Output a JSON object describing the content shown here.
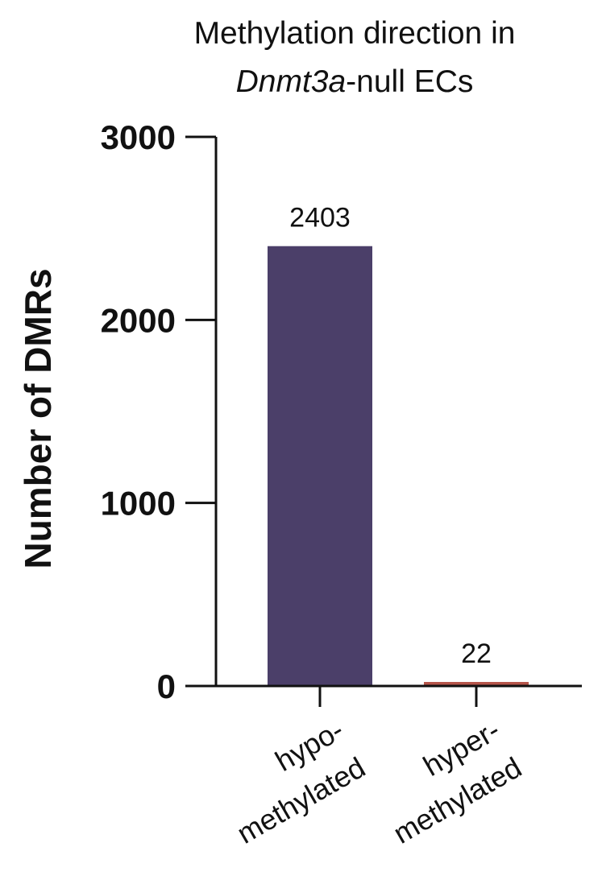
{
  "chart_data": {
    "type": "bar",
    "title_line1": "Methylation direction in",
    "title_line2_italic": "Dnmt3a",
    "title_line2_rest": "-null ECs",
    "ylabel": "Number of DMRs",
    "xlabel": "",
    "ylim": [
      0,
      3000
    ],
    "yticks": [
      0,
      1000,
      2000,
      3000
    ],
    "ytick_labels": [
      "0",
      "1000",
      "2000",
      "3000"
    ],
    "categories": [
      [
        "hypo-",
        "methylated"
      ],
      [
        "hyper-",
        "methylated"
      ]
    ],
    "values": [
      2403,
      22
    ],
    "data_labels": [
      "2403",
      "22"
    ],
    "colors": [
      "#4b3f69",
      "#b5554a"
    ],
    "legend": "none",
    "grid": false
  }
}
